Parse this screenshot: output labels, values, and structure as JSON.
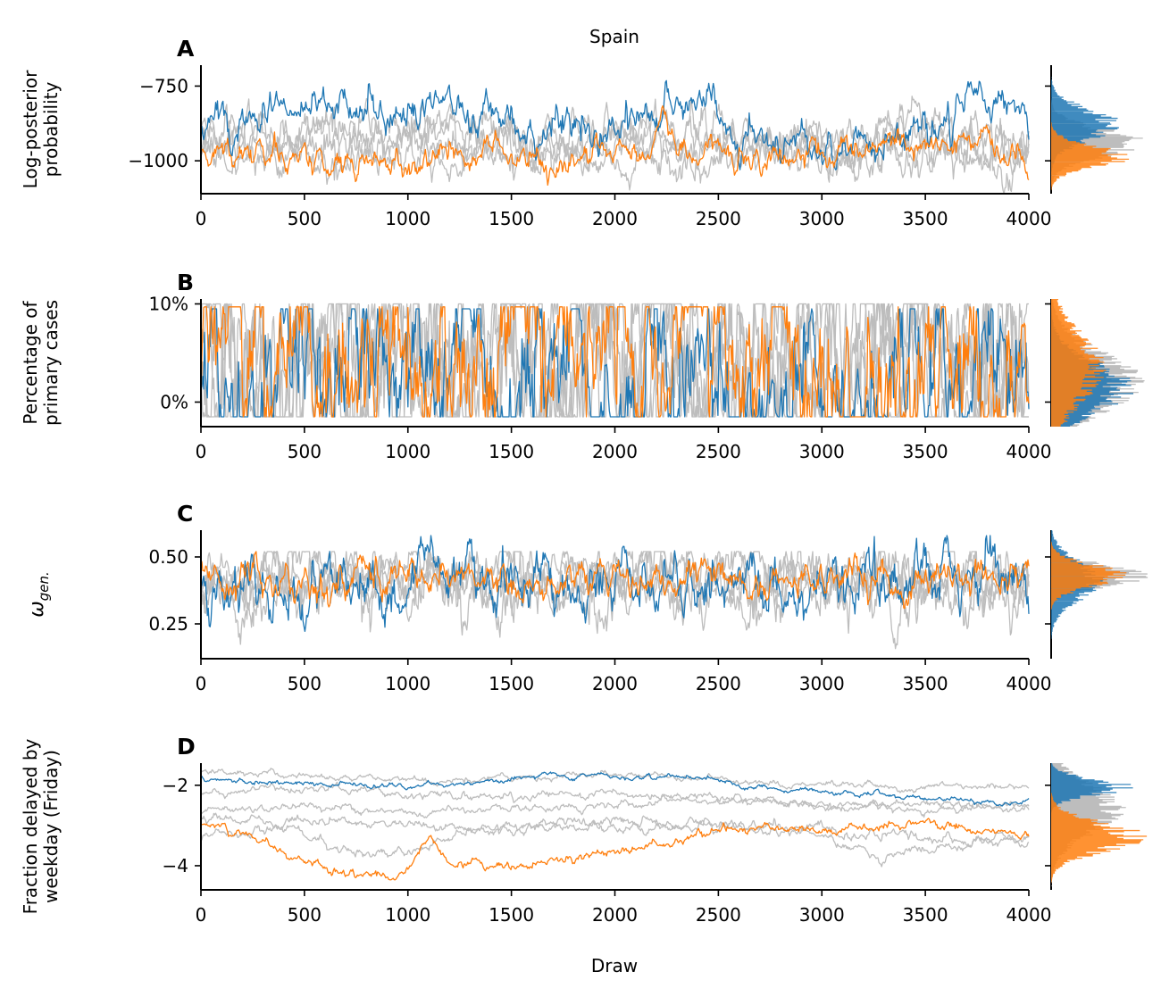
{
  "figure": {
    "title": "Spain",
    "xlabel": "Draw",
    "colors": {
      "chain_highlight_1": "#1f77b4",
      "chain_highlight_2": "#ff7f0e",
      "chain_other": "#bdbdbd"
    }
  },
  "chart_data": [
    {
      "type": "line",
      "panel": "A",
      "ylabel": "Log-posterior\nprobability",
      "xlim": [
        0,
        4000
      ],
      "ylim": [
        -1110,
        -680
      ],
      "xticks": [
        "0",
        "500",
        "1000",
        "1500",
        "2000",
        "2500",
        "3000",
        "3500",
        "4000"
      ],
      "yticks": [
        {
          "value": -750,
          "label": "−750"
        },
        {
          "value": -1000,
          "label": "−1000"
        }
      ],
      "series": [
        {
          "role": "other",
          "values_x": [
            0,
            400,
            700,
            1000,
            1300,
            1700,
            2100,
            2500,
            3000,
            3500,
            4000
          ],
          "values_y": [
            -900,
            -905,
            -880,
            -890,
            -910,
            -900,
            -905,
            -910,
            -935,
            -910,
            -940
          ],
          "noise": 45
        },
        {
          "role": "other",
          "values_x": [
            0,
            500,
            1000,
            1500,
            2000,
            2500,
            3000,
            3500,
            4000
          ],
          "values_y": [
            -960,
            -950,
            -930,
            -960,
            -950,
            -960,
            -950,
            -940,
            -930
          ],
          "noise": 40
        },
        {
          "role": "other",
          "values_x": [
            0,
            500,
            1000,
            1500,
            2000,
            2500,
            3000,
            3500,
            4000
          ],
          "values_y": [
            -975,
            -985,
            -980,
            -970,
            -990,
            -975,
            -985,
            -990,
            -985
          ],
          "noise": 40
        },
        {
          "role": "other",
          "values_x": [
            0,
            600,
            1200,
            1800,
            2400,
            3000,
            3600,
            4000
          ],
          "values_y": [
            -930,
            -920,
            -915,
            -935,
            -940,
            -925,
            -945,
            -950
          ],
          "noise": 40
        },
        {
          "role": "highlight_1",
          "values_x": [
            0,
            300,
            700,
            1000,
            1150,
            1500,
            2000,
            2350,
            2600,
            3000,
            3400,
            3800,
            3900,
            4000
          ],
          "values_y": [
            -880,
            -860,
            -810,
            -870,
            -820,
            -890,
            -870,
            -830,
            -900,
            -930,
            -920,
            -800,
            -780,
            -880
          ],
          "noise": 40
        },
        {
          "role": "highlight_2",
          "values_x": [
            0,
            500,
            900,
            1300,
            1700,
            2100,
            2500,
            3000,
            3500,
            3600,
            4000
          ],
          "values_y": [
            -975,
            -990,
            -1020,
            -975,
            -1010,
            -960,
            -985,
            -975,
            -970,
            -930,
            -980
          ],
          "noise": 30
        }
      ],
      "histograms": [
        {
          "role": "other",
          "center": -940,
          "spread": 45,
          "max_width": 1.0
        },
        {
          "role": "highlight_1",
          "center": -880,
          "spread": 50,
          "max_width": 0.75
        },
        {
          "role": "highlight_2",
          "center": -985,
          "spread": 35,
          "max_width": 0.85
        }
      ]
    },
    {
      "type": "line",
      "panel": "B",
      "ylabel": "Percentage of\nprimary cases",
      "xlim": [
        0,
        4000
      ],
      "ylim": [
        -0.025,
        0.105
      ],
      "xticks": [
        "0",
        "500",
        "1000",
        "1500",
        "2000",
        "2500",
        "3000",
        "3500",
        "4000"
      ],
      "yticks": [
        {
          "value": 0.1,
          "label": "10%"
        },
        {
          "value": 0.0,
          "label": "0%"
        }
      ],
      "series": [
        {
          "role": "other",
          "values_x": [
            0,
            4000
          ],
          "values_y": [
            0.04,
            0.04
          ],
          "noise": 0.055,
          "clip": [
            -0.015,
            0.1
          ]
        },
        {
          "role": "other",
          "values_x": [
            0,
            4000
          ],
          "values_y": [
            0.035,
            0.035
          ],
          "noise": 0.055,
          "clip": [
            -0.015,
            0.1
          ]
        },
        {
          "role": "other",
          "values_x": [
            0,
            4000
          ],
          "values_y": [
            0.03,
            0.03
          ],
          "noise": 0.055,
          "clip": [
            -0.015,
            0.1
          ]
        },
        {
          "role": "other",
          "values_x": [
            0,
            4000
          ],
          "values_y": [
            0.045,
            0.045
          ],
          "noise": 0.055,
          "clip": [
            -0.015,
            0.1
          ]
        },
        {
          "role": "highlight_1",
          "values_x": [
            0,
            4000
          ],
          "values_y": [
            0.025,
            0.03
          ],
          "noise": 0.05,
          "clip": [
            -0.015,
            0.095
          ]
        },
        {
          "role": "highlight_2",
          "values_x": [
            0,
            4000
          ],
          "values_y": [
            0.04,
            0.04
          ],
          "noise": 0.055,
          "clip": [
            -0.015,
            0.097
          ]
        }
      ],
      "histograms": [
        {
          "role": "other",
          "center": 0.02,
          "spread": 0.03,
          "max_width": 0.95
        },
        {
          "role": "highlight_1",
          "center": 0.015,
          "spread": 0.025,
          "max_width": 0.85
        },
        {
          "role": "highlight_2",
          "center": 0.035,
          "spread": 0.035,
          "max_width": 0.55
        }
      ]
    },
    {
      "type": "line",
      "panel": "C",
      "ylabel": "ω_gen.",
      "xlim": [
        0,
        4000
      ],
      "ylim": [
        0.12,
        0.6
      ],
      "xticks": [
        "0",
        "500",
        "1000",
        "1500",
        "2000",
        "2500",
        "3000",
        "3500",
        "4000"
      ],
      "yticks": [
        {
          "value": 0.5,
          "label": "0.50"
        },
        {
          "value": 0.25,
          "label": "0.25"
        }
      ],
      "series": [
        {
          "role": "other",
          "values_x": [
            0,
            4000
          ],
          "values_y": [
            0.4,
            0.4
          ],
          "noise": 0.07,
          "clip": [
            0.14,
            0.52
          ]
        },
        {
          "role": "other",
          "values_x": [
            0,
            4000
          ],
          "values_y": [
            0.42,
            0.42
          ],
          "noise": 0.06,
          "clip": [
            0.16,
            0.52
          ]
        },
        {
          "role": "other",
          "values_x": [
            0,
            4000
          ],
          "values_y": [
            0.38,
            0.4
          ],
          "noise": 0.07,
          "clip": [
            0.14,
            0.52
          ]
        },
        {
          "role": "other",
          "values_x": [
            0,
            4000
          ],
          "values_y": [
            0.42,
            0.41
          ],
          "noise": 0.05,
          "clip": [
            0.2,
            0.52
          ]
        },
        {
          "role": "highlight_1",
          "values_x": [
            0,
            4000
          ],
          "values_y": [
            0.38,
            0.4
          ],
          "noise": 0.07,
          "clip": [
            0.17,
            0.58
          ]
        },
        {
          "role": "highlight_2",
          "values_x": [
            0,
            4000
          ],
          "values_y": [
            0.42,
            0.42
          ],
          "noise": 0.04,
          "clip": [
            0.22,
            0.58
          ]
        }
      ],
      "histograms": [
        {
          "role": "other",
          "center": 0.43,
          "spread": 0.04,
          "max_width": 1.0
        },
        {
          "role": "highlight_1",
          "center": 0.41,
          "spread": 0.07,
          "max_width": 0.55
        },
        {
          "role": "highlight_2",
          "center": 0.43,
          "spread": 0.04,
          "max_width": 0.8
        }
      ]
    },
    {
      "type": "line",
      "panel": "D",
      "ylabel": "Fraction delayed by\nweekday (Friday)",
      "xlim": [
        0,
        4000
      ],
      "ylim": [
        -4.6,
        -1.45
      ],
      "xticks": [
        "0",
        "500",
        "1000",
        "1500",
        "2000",
        "2500",
        "3000",
        "3500",
        "4000"
      ],
      "yticks": [
        {
          "value": -2,
          "label": "−2"
        },
        {
          "value": -4,
          "label": "−4"
        }
      ],
      "series": [
        {
          "role": "other",
          "values_x": [
            0,
            500,
            1000,
            1500,
            2000,
            2500,
            3000,
            3500,
            4000
          ],
          "values_y": [
            -1.65,
            -1.75,
            -1.9,
            -1.8,
            -1.7,
            -1.85,
            -2.0,
            -2.1,
            -2.0
          ],
          "noise": 0.05
        },
        {
          "role": "other",
          "values_x": [
            0,
            500,
            1000,
            1500,
            2000,
            2500,
            3000,
            3500,
            4000
          ],
          "values_y": [
            -2.15,
            -2.1,
            -2.2,
            -2.3,
            -2.2,
            -2.4,
            -2.5,
            -2.45,
            -2.55
          ],
          "noise": 0.06
        },
        {
          "role": "other",
          "values_x": [
            0,
            500,
            1000,
            1500,
            2000,
            2500,
            3000,
            3500,
            4000
          ],
          "values_y": [
            -2.6,
            -2.5,
            -2.7,
            -2.6,
            -2.5,
            -2.3,
            -2.5,
            -2.7,
            -2.4
          ],
          "noise": 0.06
        },
        {
          "role": "other",
          "values_x": [
            0,
            400,
            700,
            900,
            1200,
            1600,
            2000,
            2500,
            3000,
            3500,
            4000
          ],
          "values_y": [
            -3.3,
            -3.1,
            -3.6,
            -3.8,
            -3.3,
            -3.0,
            -2.9,
            -3.0,
            -3.1,
            -3.3,
            -3.4
          ],
          "noise": 0.08
        },
        {
          "role": "other",
          "values_x": [
            0,
            500,
            1000,
            1500,
            2000,
            2500,
            3000,
            3300,
            3600,
            4000
          ],
          "values_y": [
            -2.8,
            -2.9,
            -3.0,
            -3.0,
            -3.1,
            -3.0,
            -3.2,
            -3.8,
            -3.5,
            -3.3
          ],
          "noise": 0.07
        },
        {
          "role": "highlight_1",
          "values_x": [
            0,
            500,
            1000,
            1500,
            1700,
            2000,
            2300,
            2600,
            3000,
            3500,
            3900,
            4000
          ],
          "values_y": [
            -1.85,
            -1.95,
            -2.05,
            -1.85,
            -1.75,
            -1.8,
            -1.8,
            -2.0,
            -2.15,
            -2.3,
            -2.45,
            -2.3
          ],
          "noise": 0.04
        },
        {
          "role": "highlight_2",
          "values_x": [
            0,
            200,
            400,
            600,
            800,
            950,
            1100,
            1200,
            1500,
            1800,
            2100,
            2300,
            2500,
            3000,
            3500,
            4000
          ],
          "values_y": [
            -3.0,
            -3.2,
            -3.7,
            -4.0,
            -4.3,
            -4.3,
            -3.3,
            -3.9,
            -4.0,
            -3.8,
            -3.6,
            -3.5,
            -3.1,
            -3.1,
            -3.0,
            -3.2
          ],
          "noise": 0.07
        }
      ],
      "histograms": [
        {
          "role": "other",
          "center": -2.6,
          "spread": 0.6,
          "max_width": 0.75
        },
        {
          "role": "highlight_1",
          "center": -2.05,
          "spread": 0.2,
          "max_width": 0.85
        },
        {
          "role": "highlight_2",
          "center": -3.3,
          "spread": 0.35,
          "max_width": 1.0
        }
      ]
    }
  ]
}
